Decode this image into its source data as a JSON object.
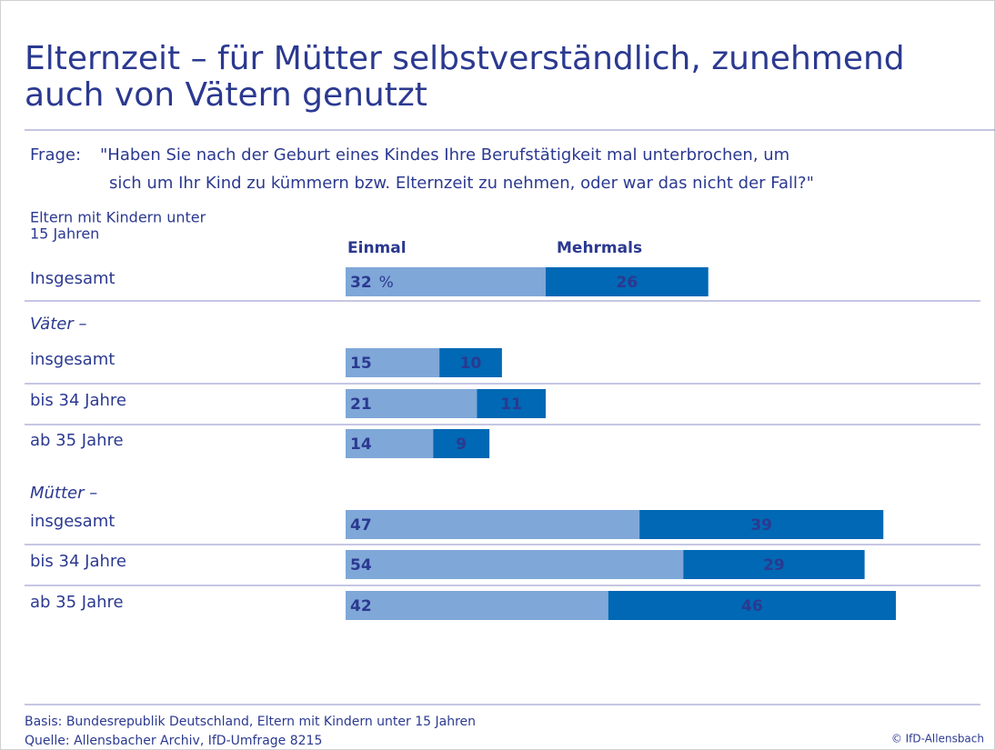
{
  "chart_data": {
    "type": "bar",
    "orientation": "horizontal",
    "stacked": true,
    "title_lines": [
      "Elternzeit – für Mütter selbstverständlich, zunehmend",
      "auch von Vätern genutzt"
    ],
    "question_label": "Frage:",
    "question_lines": [
      "\"Haben Sie nach der Geburt eines Kindes Ihre Berufstätigkeit mal unterbrochen, um",
      "sich um Ihr Kind zu kümmern bzw. Elternzeit zu nehmen, oder war das nicht der Fall?\""
    ],
    "population_lines": [
      "Eltern mit Kindern unter",
      "15 Jahren"
    ],
    "unit": "%",
    "categories": [
      "Insgesamt",
      "Väter –",
      "insgesamt",
      "bis 34 Jahre",
      "ab 35 Jahre",
      "Mütter –",
      "insgesamt",
      "bis 34 Jahre",
      "ab 35 Jahre"
    ],
    "series": [
      {
        "name": "Einmal",
        "color": "#7fa7d8",
        "values": [
          32,
          null,
          15,
          21,
          14,
          null,
          47,
          54,
          42
        ]
      },
      {
        "name": "Mehrmals",
        "color": "#0068b4",
        "values": [
          26,
          null,
          10,
          11,
          9,
          null,
          39,
          29,
          46
        ]
      }
    ],
    "basis": "Basis: Bundesrepublik Deutschland, Eltern mit Kindern unter 15 Jahren",
    "source": "Quelle: Allensbacher Archiv, IfD-Umfrage 8215",
    "copyright": "© IfD-Allensbach"
  }
}
